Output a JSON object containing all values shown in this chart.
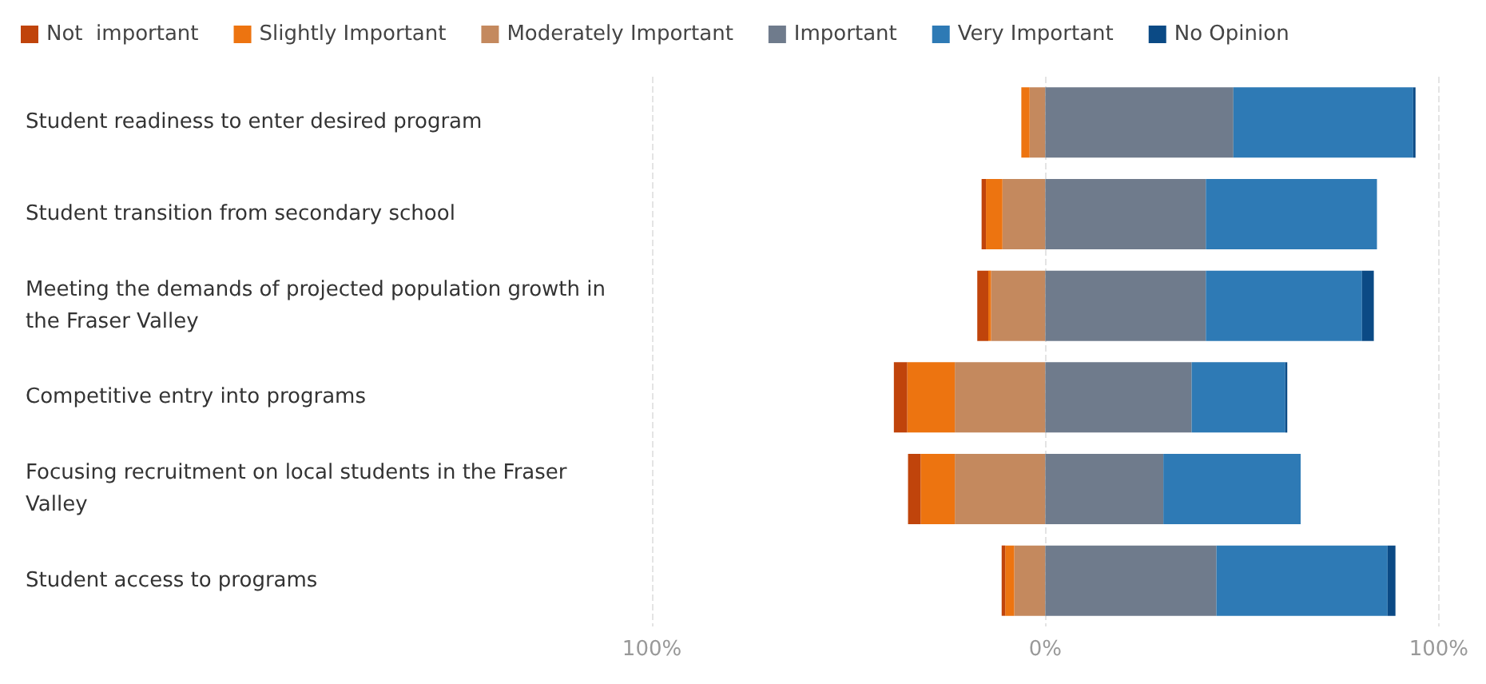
{
  "chart_data": {
    "type": "bar",
    "orientation": "horizontal",
    "stacked": true,
    "categories": [
      "Student readiness to enter desired program",
      "Student transition from secondary school",
      "Meeting the demands of projected population growth in the Fraser Valley",
      "Competitive entry into programs",
      "Focusing recruitment on local students in the Fraser Valley",
      "Student access to programs"
    ],
    "series": [
      {
        "name": "Not  important",
        "color": "#c0440b",
        "values": [
          0,
          -1.1,
          -2.8,
          -3.4,
          -3.2,
          -0.9
        ]
      },
      {
        "name": "Slightly Important",
        "color": "#ed7410",
        "values": [
          -2.1,
          -4.2,
          -0.7,
          -12.1,
          -8.7,
          -2.3
        ]
      },
      {
        "name": "Moderately Important",
        "color": "#c4895e",
        "values": [
          -4.0,
          -10.9,
          -13.8,
          -23.0,
          -23.0,
          -7.9
        ]
      },
      {
        "name": "Important",
        "color": "#6f7b8c",
        "values": [
          47.8,
          40.8,
          40.8,
          37.2,
          30.0,
          43.5
        ]
      },
      {
        "name": "Very Important",
        "color": "#2e7ab5",
        "values": [
          45.7,
          43.5,
          39.7,
          23.8,
          34.9,
          43.5
        ]
      },
      {
        "name": "No Opinion",
        "color": "#0b4a85",
        "values": [
          0.6,
          0,
          3.0,
          0.5,
          0,
          2.0
        ]
      }
    ],
    "xlim": [
      -100,
      100
    ],
    "xticks": [
      {
        "value": -100,
        "label": "100%"
      },
      {
        "value": 0,
        "label": "0%"
      },
      {
        "value": 100,
        "label": "100%"
      }
    ],
    "grid": "x",
    "legend": "top left"
  }
}
